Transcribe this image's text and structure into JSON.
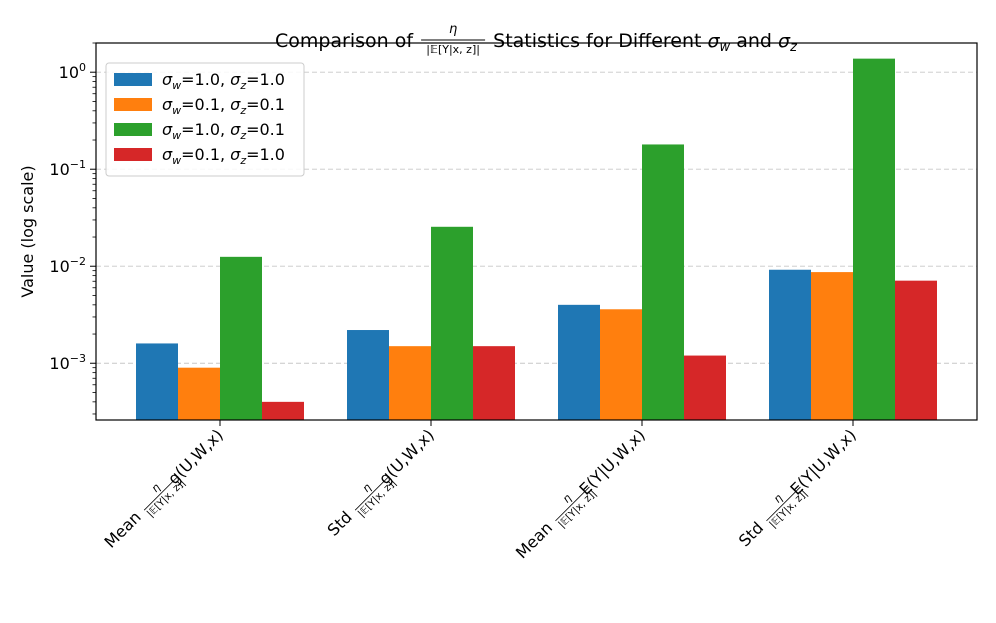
{
  "chart_data": {
    "type": "bar",
    "scale": "log",
    "title": {
      "prefix": "Comparison of",
      "frac_num": "η",
      "frac_den": "|𝔼[Y|x, z]|",
      "mid": "Statistics for Different",
      "sym1": "σ",
      "sub1": "w",
      "and": "and",
      "sym2": "σ",
      "sub2": "z"
    },
    "ylabel": "Value (log scale)",
    "ylim": [
      0.00026,
      2.0
    ],
    "y_ticks": [
      {
        "value": 0.001,
        "base": "10",
        "exp": "−3"
      },
      {
        "value": 0.01,
        "base": "10",
        "exp": "−2"
      },
      {
        "value": 0.1,
        "base": "10",
        "exp": "−1"
      },
      {
        "value": 1,
        "base": "10",
        "exp": "0"
      }
    ],
    "grid": "y-dashed",
    "legend_position": "top-left",
    "categories": [
      {
        "prefix": "Mean",
        "num": "η",
        "den": "|𝔼[Y|x, z]|",
        "suffix": "g(U,W,x)"
      },
      {
        "prefix": "Std",
        "num": "η",
        "den": "|𝔼[Y|x, z]|",
        "suffix": "g(U,W,x)"
      },
      {
        "prefix": "Mean",
        "num": "η",
        "den": "|𝔼[Y|x, z]|",
        "suffix": "E(Y|U,W,x)"
      },
      {
        "prefix": "Std",
        "num": "η",
        "den": "|𝔼[Y|x, z]|",
        "suffix": "E(Y|U,W,x)"
      }
    ],
    "series": [
      {
        "name": "σw=1.0, σz=1.0",
        "sw": "1.0",
        "sz": "1.0",
        "color": "#1f77b4",
        "values": [
          0.0016,
          0.0022,
          0.004,
          0.0092
        ]
      },
      {
        "name": "σw=0.1, σz=0.1",
        "sw": "0.1",
        "sz": "0.1",
        "color": "#ff7f0e",
        "values": [
          0.0009,
          0.0015,
          0.0036,
          0.0087
        ]
      },
      {
        "name": "σw=1.0, σz=0.1",
        "sw": "1.0",
        "sz": "0.1",
        "color": "#2ca02c",
        "values": [
          0.0125,
          0.0255,
          0.18,
          1.38
        ]
      },
      {
        "name": "σw=0.1, σz=1.0",
        "sw": "0.1",
        "sz": "1.0",
        "color": "#d62728",
        "values": [
          0.0004,
          0.0015,
          0.0012,
          0.0071
        ]
      }
    ]
  }
}
